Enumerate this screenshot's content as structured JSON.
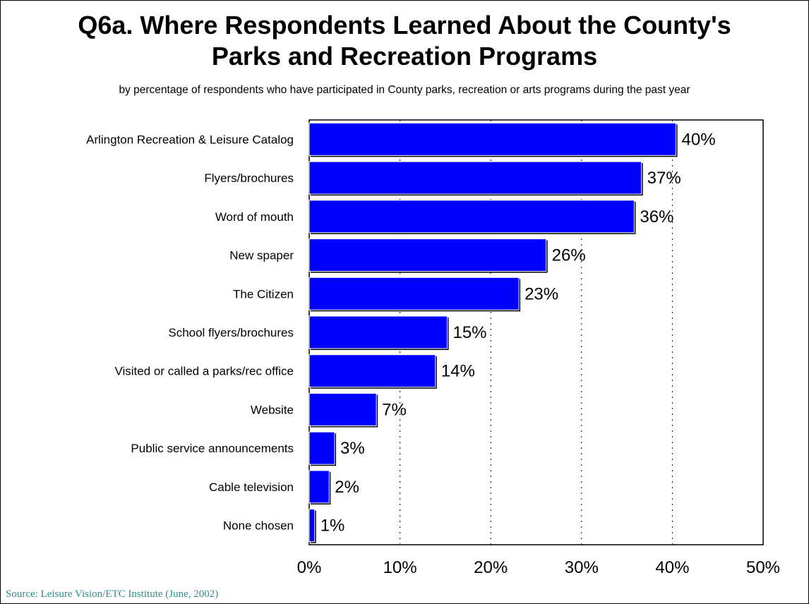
{
  "title_line1": "Q6a. Where Respondents Learned About the County's",
  "title_line2": "Parks and Recreation Programs",
  "subtitle": "by percentage of respondents who have participated in County parks, recreation or arts programs during the past year",
  "source": "Source:  Leisure Vision/ETC Institute (June, 2002)",
  "colors": {
    "bar": "#0000ff",
    "bar_shadow": "#000000",
    "source_text": "#2e8b8b"
  },
  "chart_data": {
    "type": "bar",
    "orientation": "horizontal",
    "categories": [
      "Arlington Recreation & Leisure Catalog",
      "Flyers/brochures",
      "Word of mouth",
      "New spaper",
      "The Citizen",
      "School flyers/brochures",
      "Visited or called a parks/rec office",
      "Website",
      "Public service announcements",
      "Cable television",
      "None chosen"
    ],
    "values": [
      40.4,
      36.6,
      35.8,
      26.1,
      23.1,
      15.2,
      13.9,
      7.4,
      2.8,
      2.2,
      0.6
    ],
    "data_labels": [
      "40%",
      "37%",
      "36%",
      "26%",
      "23%",
      "15%",
      "14%",
      "7%",
      "3%",
      "2%",
      "1%"
    ],
    "xlim": [
      0,
      50
    ],
    "xticks": [
      "0%",
      "10%",
      "20%",
      "30%",
      "40%",
      "50%"
    ],
    "grid": "vertical dotted",
    "legend": "none"
  }
}
